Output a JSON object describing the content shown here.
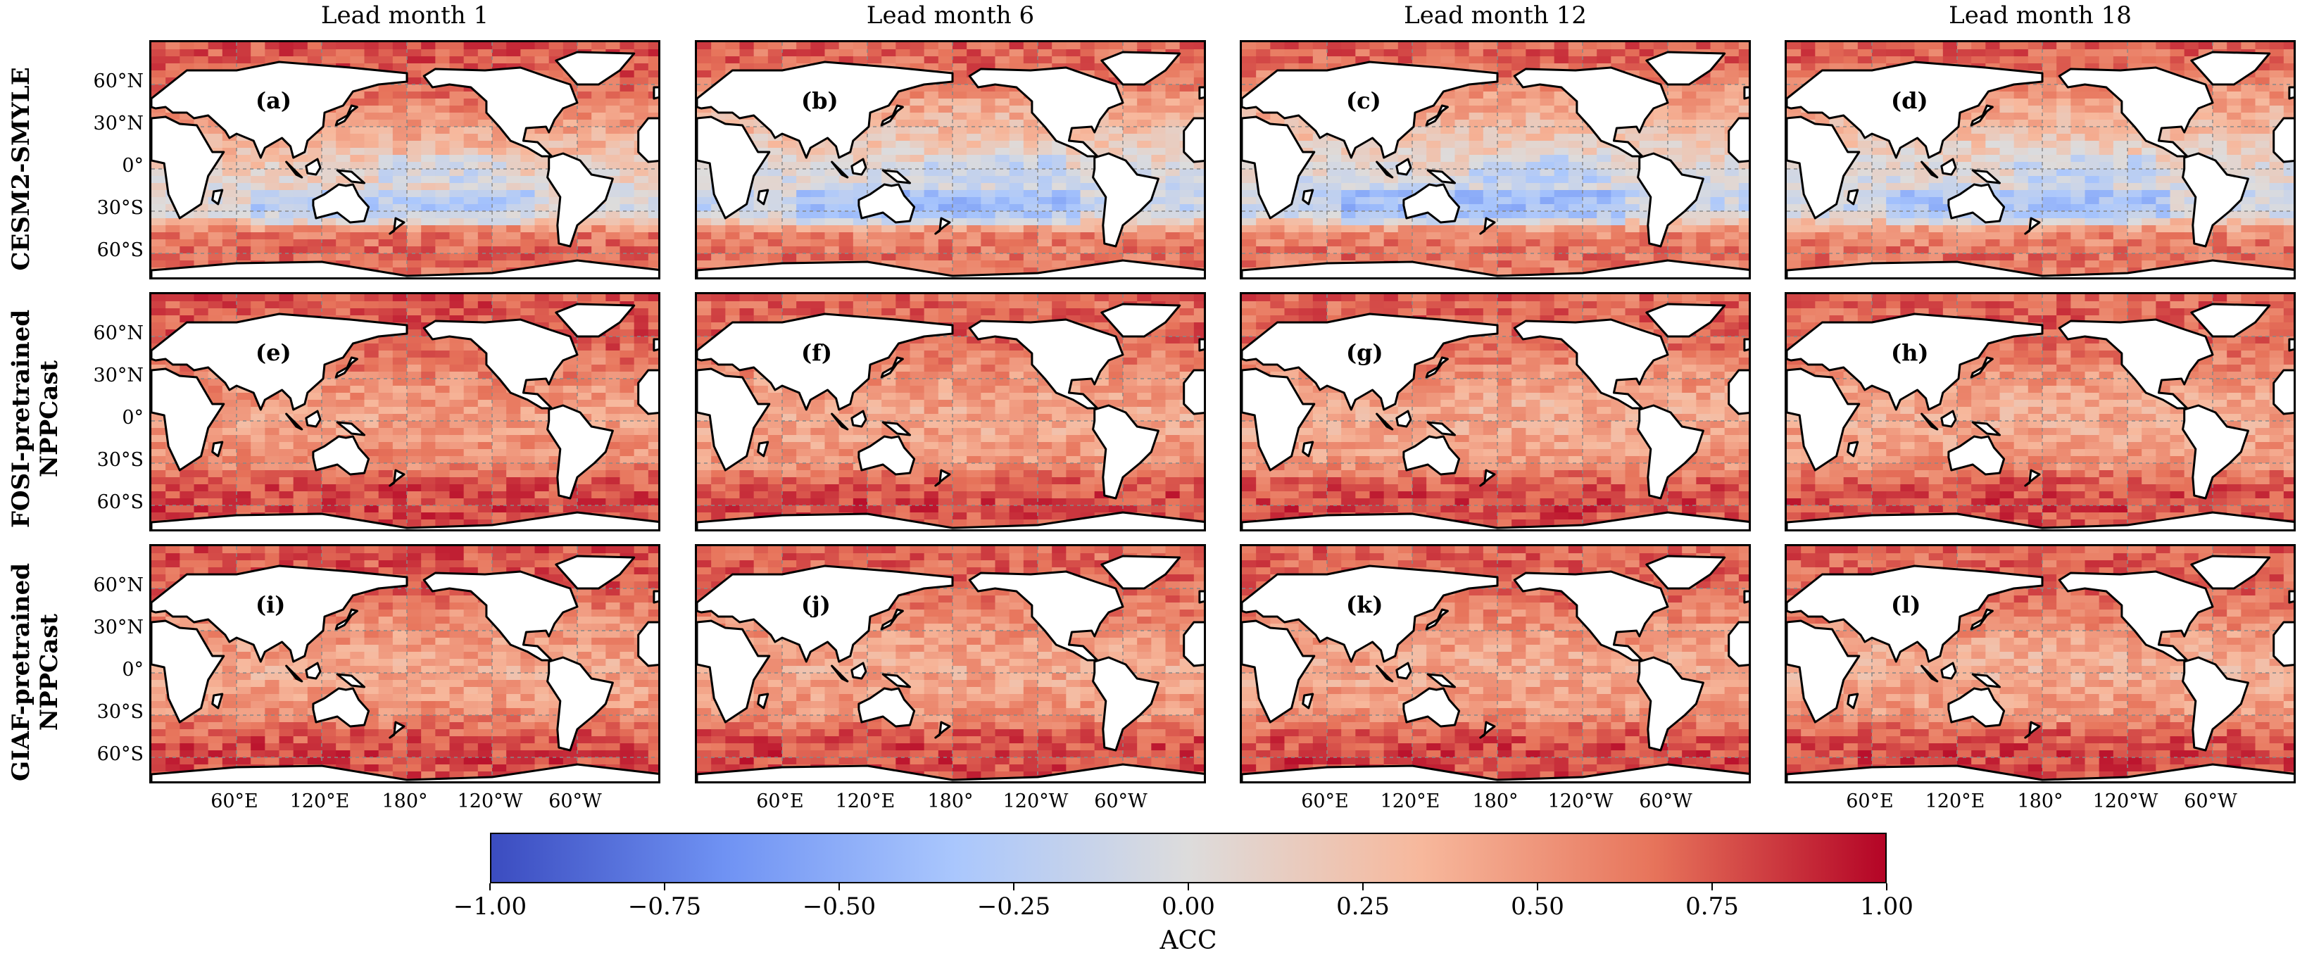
{
  "chart_data": {
    "type": "heatmap",
    "title": "",
    "columns": [
      "Lead month 1",
      "Lead month 6",
      "Lead month 12",
      "Lead month 18"
    ],
    "rows": [
      "CESM2-SMYLE",
      "FOSI-pretrained\nNPPCast",
      "GIAF-pretrained\nNPPCast"
    ],
    "panel_labels": [
      "(a)",
      "(b)",
      "(c)",
      "(d)",
      "(e)",
      "(f)",
      "(g)",
      "(h)",
      "(i)",
      "(j)",
      "(k)",
      "(l)"
    ],
    "lat_ticks": [
      "60°N",
      "30°N",
      "0°",
      "30°S",
      "60°S"
    ],
    "lat_tick_values": [
      60,
      30,
      0,
      -30,
      -60
    ],
    "lon_ticks": [
      "60°E",
      "120°E",
      "180°",
      "120°W",
      "60°W"
    ],
    "lon_tick_values": [
      60,
      120,
      180,
      240,
      300
    ],
    "lon_range": [
      0,
      360
    ],
    "lat_range": [
      -80,
      90
    ],
    "colorbar": {
      "label": "ACC",
      "range": [
        -1.0,
        1.0
      ],
      "ticks": [
        "−1.00",
        "−0.75",
        "−0.50",
        "−0.25",
        "0.00",
        "0.25",
        "0.50",
        "0.75",
        "1.00"
      ],
      "tick_values": [
        -1.0,
        -0.75,
        -0.5,
        -0.25,
        0.0,
        0.25,
        0.5,
        0.75,
        1.0
      ],
      "colormap": "coolwarm",
      "colors": [
        "#3b4cc0",
        "#6f92f3",
        "#aac7fd",
        "#dddcdc",
        "#f7b89c",
        "#e7745b",
        "#b40426"
      ]
    },
    "approx_zonal_mean_acc": {
      "lat_bands": [
        75,
        60,
        45,
        30,
        15,
        0,
        -15,
        -30,
        -45,
        -60,
        -75
      ],
      "CESM2-SMYLE": [
        [
          0.75,
          0.7,
          0.55,
          0.45,
          0.3,
          0.15,
          0.05,
          0.0,
          0.6,
          0.7,
          0.65
        ],
        [
          0.7,
          0.6,
          0.4,
          0.3,
          0.15,
          0.05,
          -0.1,
          -0.15,
          0.55,
          0.65,
          0.6
        ],
        [
          0.7,
          0.55,
          0.4,
          0.3,
          0.15,
          0.05,
          -0.1,
          -0.15,
          0.55,
          0.65,
          0.6
        ],
        [
          0.7,
          0.55,
          0.4,
          0.3,
          0.15,
          0.05,
          -0.05,
          -0.1,
          0.55,
          0.65,
          0.6
        ]
      ],
      "FOSI-pretrained NPPCast": [
        [
          0.75,
          0.75,
          0.65,
          0.55,
          0.5,
          0.45,
          0.5,
          0.55,
          0.75,
          0.8,
          0.75
        ],
        [
          0.7,
          0.7,
          0.6,
          0.5,
          0.45,
          0.4,
          0.45,
          0.5,
          0.75,
          0.8,
          0.75
        ],
        [
          0.7,
          0.7,
          0.6,
          0.5,
          0.4,
          0.4,
          0.45,
          0.5,
          0.75,
          0.8,
          0.75
        ],
        [
          0.7,
          0.7,
          0.6,
          0.5,
          0.4,
          0.4,
          0.45,
          0.5,
          0.75,
          0.8,
          0.75
        ]
      ],
      "GIAF-pretrained NPPCast": [
        [
          0.75,
          0.75,
          0.6,
          0.5,
          0.45,
          0.4,
          0.45,
          0.55,
          0.75,
          0.8,
          0.75
        ],
        [
          0.7,
          0.7,
          0.6,
          0.5,
          0.45,
          0.4,
          0.45,
          0.5,
          0.75,
          0.8,
          0.75
        ],
        [
          0.7,
          0.7,
          0.6,
          0.5,
          0.45,
          0.4,
          0.45,
          0.5,
          0.75,
          0.8,
          0.75
        ],
        [
          0.7,
          0.7,
          0.6,
          0.5,
          0.4,
          0.35,
          0.45,
          0.5,
          0.75,
          0.8,
          0.75
        ]
      ]
    }
  }
}
